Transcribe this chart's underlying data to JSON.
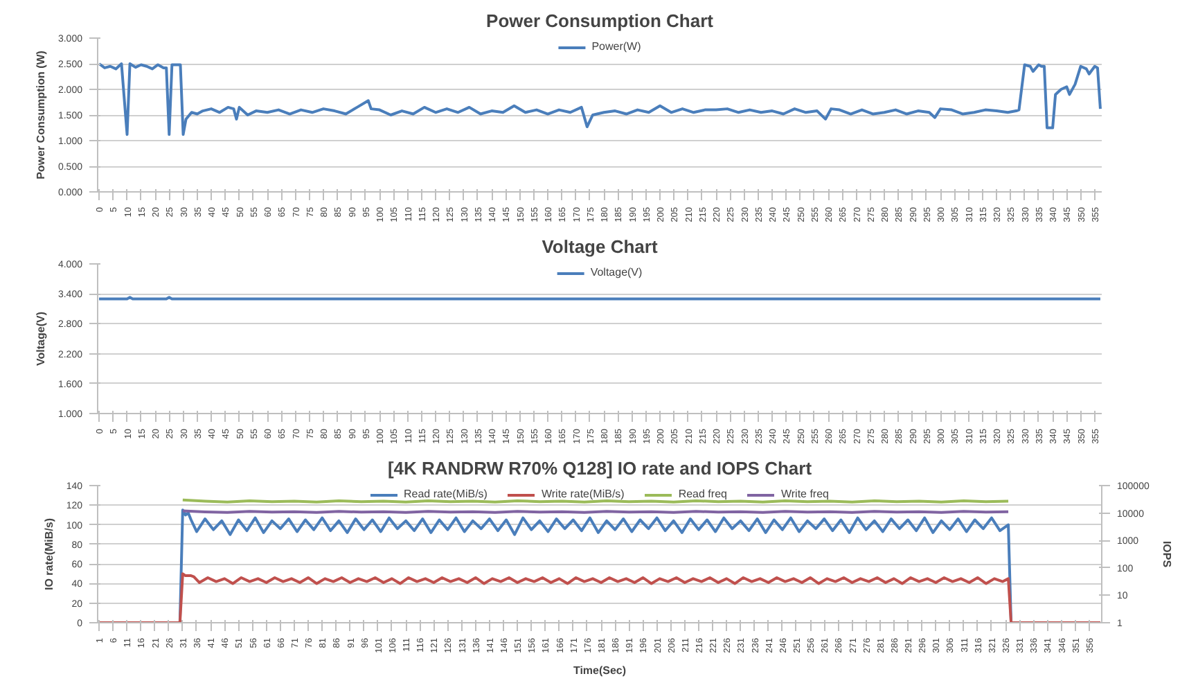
{
  "chart_data": [
    {
      "type": "line",
      "title": "Power Consumption Chart",
      "ylabel": "Power Consumption (W)",
      "xlim": [
        -0.5,
        357.5
      ],
      "ylim": [
        0,
        3
      ],
      "yticks": [
        {
          "value": 0,
          "label": "0.000"
        },
        {
          "value": 0.5,
          "label": "0.500"
        },
        {
          "value": 1,
          "label": "1.000"
        },
        {
          "value": 1.5,
          "label": "1.500"
        },
        {
          "value": 2,
          "label": "2.000"
        },
        {
          "value": 2.5,
          "label": "2.500"
        },
        {
          "value": 3,
          "label": "3.000"
        }
      ],
      "xticks": [
        0,
        5,
        10,
        15,
        20,
        25,
        30,
        35,
        40,
        45,
        50,
        55,
        60,
        65,
        70,
        75,
        80,
        85,
        90,
        95,
        100,
        105,
        110,
        115,
        120,
        125,
        130,
        135,
        140,
        145,
        150,
        155,
        160,
        165,
        170,
        175,
        180,
        185,
        190,
        195,
        200,
        205,
        210,
        215,
        220,
        225,
        230,
        235,
        240,
        245,
        250,
        255,
        260,
        265,
        270,
        275,
        280,
        285,
        290,
        295,
        300,
        305,
        310,
        315,
        320,
        325,
        330,
        335,
        340,
        345,
        350,
        355
      ],
      "grid": "y",
      "legend": "top",
      "series": [
        {
          "name": "Power(W)",
          "color": "#4a7ebb",
          "x": [
            0,
            2,
            4,
            6,
            8,
            10,
            11,
            13,
            15,
            17,
            19,
            21,
            23,
            24,
            25,
            26,
            29,
            30,
            31,
            33,
            35,
            37,
            40,
            43,
            46,
            48,
            49,
            50,
            53,
            56,
            60,
            64,
            68,
            72,
            76,
            80,
            84,
            88,
            92,
            96,
            97,
            100,
            104,
            108,
            112,
            116,
            120,
            124,
            128,
            132,
            136,
            140,
            144,
            148,
            152,
            156,
            160,
            164,
            168,
            172,
            174,
            176,
            180,
            184,
            188,
            192,
            196,
            200,
            204,
            208,
            212,
            216,
            220,
            224,
            228,
            232,
            236,
            240,
            244,
            248,
            252,
            256,
            259,
            261,
            264,
            268,
            272,
            276,
            280,
            284,
            288,
            292,
            296,
            298,
            300,
            304,
            308,
            312,
            316,
            320,
            324,
            327,
            328,
            330,
            332,
            333,
            335,
            336,
            337,
            338,
            340,
            341,
            343,
            345,
            346,
            348,
            350,
            352,
            353,
            355,
            356,
            357
          ],
          "values": [
            2.5,
            2.42,
            2.45,
            2.4,
            2.5,
            1.12,
            2.5,
            2.43,
            2.48,
            2.45,
            2.4,
            2.48,
            2.42,
            2.42,
            1.12,
            2.48,
            2.48,
            1.12,
            1.42,
            1.55,
            1.52,
            1.58,
            1.62,
            1.55,
            1.65,
            1.62,
            1.42,
            1.65,
            1.5,
            1.58,
            1.55,
            1.6,
            1.52,
            1.6,
            1.55,
            1.62,
            1.58,
            1.52,
            1.65,
            1.78,
            1.62,
            1.6,
            1.5,
            1.58,
            1.52,
            1.65,
            1.55,
            1.62,
            1.55,
            1.65,
            1.52,
            1.58,
            1.55,
            1.68,
            1.55,
            1.6,
            1.52,
            1.6,
            1.55,
            1.65,
            1.27,
            1.5,
            1.55,
            1.58,
            1.52,
            1.6,
            1.55,
            1.68,
            1.55,
            1.62,
            1.55,
            1.6,
            1.6,
            1.62,
            1.55,
            1.6,
            1.55,
            1.58,
            1.52,
            1.62,
            1.55,
            1.58,
            1.42,
            1.62,
            1.6,
            1.52,
            1.6,
            1.52,
            1.55,
            1.6,
            1.52,
            1.58,
            1.55,
            1.45,
            1.62,
            1.6,
            1.52,
            1.55,
            1.6,
            1.58,
            1.55,
            1.58,
            1.6,
            2.48,
            2.45,
            2.35,
            2.48,
            2.45,
            2.45,
            1.25,
            1.25,
            1.9,
            2.0,
            2.05,
            1.9,
            2.1,
            2.45,
            2.4,
            2.3,
            2.45,
            2.42,
            1.62
          ]
        }
      ]
    },
    {
      "type": "line",
      "title": "Voltage Chart",
      "ylabel": "Voltage(V)",
      "xlim": [
        -0.5,
        357.5
      ],
      "ylim": [
        1,
        4
      ],
      "yticks": [
        {
          "value": 1,
          "label": "1.000"
        },
        {
          "value": 1.6,
          "label": "1.600"
        },
        {
          "value": 2.2,
          "label": "2.200"
        },
        {
          "value": 2.8,
          "label": "2.800"
        },
        {
          "value": 3.4,
          "label": "3.400"
        },
        {
          "value": 4,
          "label": "4.000"
        }
      ],
      "xticks": [
        0,
        5,
        10,
        15,
        20,
        25,
        30,
        35,
        40,
        45,
        50,
        55,
        60,
        65,
        70,
        75,
        80,
        85,
        90,
        95,
        100,
        105,
        110,
        115,
        120,
        125,
        130,
        135,
        140,
        145,
        150,
        155,
        160,
        165,
        170,
        175,
        180,
        185,
        190,
        195,
        200,
        205,
        210,
        215,
        220,
        225,
        230,
        235,
        240,
        245,
        250,
        255,
        260,
        265,
        270,
        275,
        280,
        285,
        290,
        295,
        300,
        305,
        310,
        315,
        320,
        325,
        330,
        335,
        340,
        345,
        350,
        355
      ],
      "grid": "y",
      "legend": "top",
      "series": [
        {
          "name": "Voltage(V)",
          "color": "#4a7ebb",
          "x": [
            0,
            10,
            11,
            12,
            24,
            25,
            26,
            357
          ],
          "values": [
            3.3,
            3.3,
            3.33,
            3.3,
            3.3,
            3.33,
            3.3,
            3.3
          ]
        }
      ]
    },
    {
      "type": "line",
      "title": "[4K RANDRW R70% Q128] IO rate and IOPS Chart",
      "xlabel": "Time(Sec)",
      "ylabel": "IO rate(MiB/s)",
      "y2label": "IOPS",
      "log": "y2",
      "xlim": [
        0.5,
        360.5
      ],
      "ylim": [
        0,
        140
      ],
      "yticks": [
        0,
        20,
        40,
        60,
        80,
        100,
        120,
        140
      ],
      "y2lim": [
        1,
        100000
      ],
      "y2ticks": [
        1,
        10,
        100,
        1000,
        10000,
        100000
      ],
      "xticks": [
        1,
        6,
        11,
        16,
        21,
        26,
        31,
        36,
        41,
        46,
        51,
        56,
        61,
        66,
        71,
        76,
        81,
        86,
        91,
        96,
        101,
        106,
        111,
        116,
        121,
        126,
        131,
        136,
        141,
        146,
        151,
        156,
        161,
        166,
        171,
        176,
        181,
        186,
        191,
        196,
        201,
        206,
        211,
        216,
        221,
        226,
        231,
        236,
        241,
        246,
        251,
        256,
        261,
        266,
        271,
        276,
        281,
        286,
        291,
        296,
        301,
        306,
        311,
        316,
        321,
        326,
        331,
        336,
        341,
        346,
        351,
        356
      ],
      "grid": "y",
      "legend": "top",
      "series": [
        {
          "name": "Read rate(MiB/s)",
          "color": "#4a7ebb",
          "x": [
            1,
            30,
            31,
            32,
            33,
            34,
            36,
            39,
            42,
            45,
            48,
            51,
            54,
            57,
            60,
            63,
            66,
            69,
            72,
            75,
            78,
            81,
            84,
            87,
            90,
            93,
            96,
            99,
            102,
            105,
            108,
            111,
            114,
            117,
            120,
            123,
            126,
            129,
            132,
            135,
            138,
            141,
            144,
            147,
            150,
            153,
            156,
            159,
            162,
            165,
            168,
            171,
            174,
            177,
            180,
            183,
            186,
            189,
            192,
            195,
            198,
            201,
            204,
            207,
            210,
            213,
            216,
            219,
            222,
            225,
            228,
            231,
            234,
            237,
            240,
            243,
            246,
            249,
            252,
            255,
            258,
            261,
            264,
            267,
            270,
            273,
            276,
            279,
            282,
            285,
            288,
            291,
            294,
            297,
            300,
            303,
            306,
            309,
            312,
            315,
            318,
            321,
            324,
            327,
            328,
            360
          ],
          "values": [
            0,
            0,
            115,
            110,
            112,
            105,
            93,
            106,
            95,
            104,
            90,
            105,
            94,
            107,
            92,
            104,
            96,
            106,
            93,
            105,
            95,
            107,
            94,
            104,
            92,
            106,
            95,
            105,
            93,
            107,
            96,
            104,
            94,
            106,
            92,
            105,
            95,
            107,
            93,
            104,
            96,
            106,
            94,
            105,
            90,
            107,
            95,
            104,
            93,
            106,
            96,
            105,
            94,
            107,
            92,
            104,
            95,
            106,
            93,
            105,
            96,
            107,
            94,
            104,
            92,
            106,
            95,
            105,
            93,
            107,
            96,
            104,
            94,
            106,
            92,
            105,
            95,
            107,
            93,
            104,
            96,
            106,
            94,
            105,
            92,
            107,
            95,
            104,
            93,
            106,
            96,
            105,
            94,
            107,
            92,
            104,
            95,
            106,
            93,
            105,
            96,
            107,
            94,
            100,
            0,
            0
          ]
        },
        {
          "name": "Write rate(MiB/s)",
          "color": "#c0504d",
          "x": [
            1,
            30,
            31,
            32,
            34,
            35,
            37,
            40,
            43,
            46,
            49,
            52,
            55,
            58,
            61,
            64,
            67,
            70,
            73,
            76,
            79,
            82,
            85,
            88,
            91,
            94,
            97,
            100,
            103,
            106,
            109,
            112,
            115,
            118,
            121,
            124,
            127,
            130,
            133,
            136,
            139,
            142,
            145,
            148,
            151,
            154,
            157,
            160,
            163,
            166,
            169,
            172,
            175,
            178,
            181,
            184,
            187,
            190,
            193,
            196,
            199,
            202,
            205,
            208,
            211,
            214,
            217,
            220,
            223,
            226,
            229,
            232,
            235,
            238,
            241,
            244,
            247,
            250,
            253,
            256,
            259,
            262,
            265,
            268,
            271,
            274,
            277,
            280,
            283,
            286,
            289,
            292,
            295,
            298,
            301,
            304,
            307,
            310,
            313,
            316,
            319,
            322,
            325,
            327,
            328,
            360
          ],
          "values": [
            0,
            0,
            50,
            48,
            48,
            47,
            41,
            46,
            42,
            45,
            40,
            46,
            42,
            45,
            41,
            46,
            42,
            45,
            41,
            46,
            40,
            45,
            42,
            46,
            41,
            45,
            42,
            46,
            41,
            45,
            40,
            46,
            42,
            45,
            41,
            46,
            42,
            45,
            41,
            46,
            40,
            45,
            42,
            46,
            41,
            45,
            42,
            46,
            41,
            45,
            40,
            46,
            42,
            45,
            41,
            46,
            42,
            45,
            41,
            46,
            40,
            45,
            42,
            46,
            41,
            45,
            42,
            46,
            41,
            45,
            40,
            46,
            42,
            45,
            41,
            46,
            42,
            45,
            41,
            46,
            40,
            45,
            42,
            46,
            41,
            45,
            42,
            46,
            41,
            45,
            40,
            46,
            42,
            45,
            41,
            46,
            42,
            45,
            41,
            46,
            40,
            45,
            42,
            45,
            0,
            0
          ]
        },
        {
          "name": "Read freq",
          "color": "#9bbb59",
          "axis": "y2",
          "x": [
            31,
            39,
            47,
            55,
            63,
            71,
            79,
            87,
            95,
            103,
            111,
            119,
            127,
            135,
            143,
            151,
            159,
            167,
            175,
            183,
            191,
            199,
            207,
            215,
            223,
            231,
            239,
            247,
            255,
            263,
            271,
            279,
            287,
            295,
            303,
            311,
            319,
            327
          ],
          "values": [
            30000,
            27000,
            25000,
            28000,
            26000,
            27000,
            25000,
            28000,
            26000,
            27000,
            25000,
            28000,
            26000,
            27000,
            25000,
            28000,
            26000,
            27000,
            25000,
            28000,
            26000,
            27000,
            25000,
            28000,
            26000,
            27000,
            25000,
            28000,
            26000,
            27000,
            25000,
            28000,
            26000,
            27000,
            25000,
            28000,
            26000,
            27000
          ]
        },
        {
          "name": "Write freq",
          "color": "#8064a2",
          "axis": "y2",
          "x": [
            31,
            39,
            47,
            55,
            63,
            71,
            79,
            87,
            95,
            103,
            111,
            119,
            127,
            135,
            143,
            151,
            159,
            167,
            175,
            183,
            191,
            199,
            207,
            215,
            223,
            231,
            239,
            247,
            255,
            263,
            271,
            279,
            287,
            295,
            303,
            311,
            319,
            327
          ],
          "values": [
            12000,
            11000,
            10500,
            11500,
            10800,
            11200,
            10500,
            11500,
            10800,
            11200,
            10500,
            11500,
            10800,
            11200,
            10500,
            11500,
            10800,
            11200,
            10500,
            11500,
            10800,
            11200,
            10500,
            11500,
            10800,
            11200,
            10500,
            11500,
            10800,
            11200,
            10500,
            11500,
            10800,
            11200,
            10500,
            11500,
            10800,
            11200
          ]
        }
      ]
    }
  ]
}
